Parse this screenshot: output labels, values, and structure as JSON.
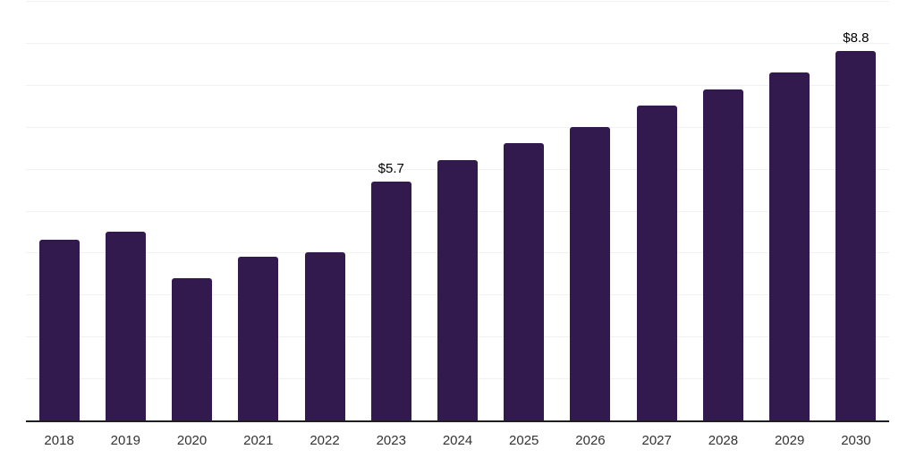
{
  "chart_data": {
    "type": "bar",
    "title": "",
    "xlabel": "",
    "ylabel": "",
    "categories": [
      "2018",
      "2019",
      "2020",
      "2021",
      "2022",
      "2023",
      "2024",
      "2025",
      "2026",
      "2027",
      "2028",
      "2029",
      "2030"
    ],
    "values": [
      4.3,
      4.5,
      3.4,
      3.9,
      4.0,
      5.7,
      6.2,
      6.6,
      7.0,
      7.5,
      7.9,
      8.3,
      8.8
    ],
    "data_labels": {
      "2023": "$5.7",
      "2030": "$8.8"
    },
    "ylim": [
      0,
      10
    ],
    "gridline_step": 1,
    "legend": "none",
    "grid": "horizontal",
    "colors": {
      "bar": "#321a4e",
      "gridline": "#f1f1f1",
      "axis_line": "#1f1f1f",
      "tick_label": "#333333",
      "data_label": "#000000",
      "background": "#ffffff"
    }
  }
}
